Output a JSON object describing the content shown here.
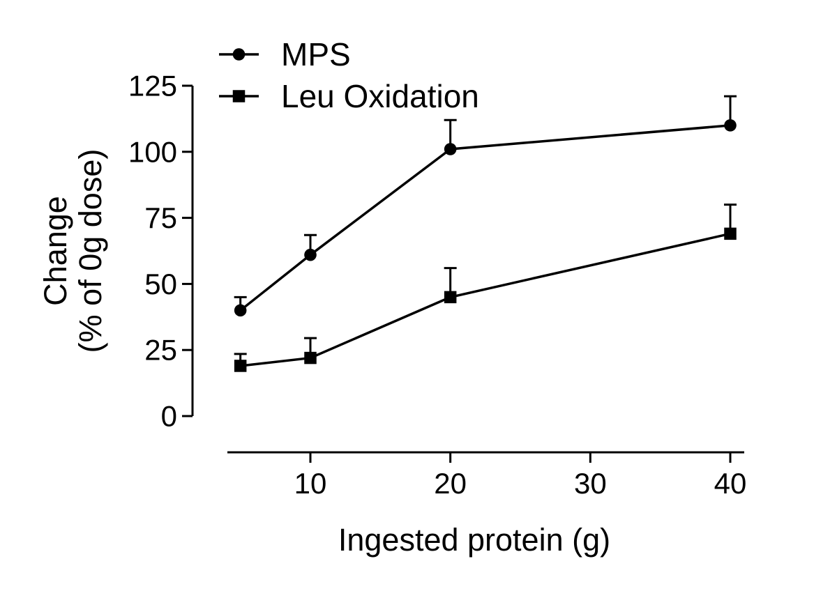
{
  "figure": {
    "background": "#ffffff",
    "foreground": "#000000"
  },
  "chart_data": {
    "type": "line",
    "x": [
      5,
      10,
      20,
      40
    ],
    "series": [
      {
        "name": "MPS",
        "marker": "circle",
        "values": [
          40,
          61,
          101,
          110
        ],
        "error_up": [
          5,
          7.5,
          11,
          11
        ]
      },
      {
        "name": "Leu Oxidation",
        "marker": "square",
        "values": [
          19,
          22,
          45,
          69
        ],
        "error_up": [
          4.5,
          7.5,
          11,
          11
        ]
      }
    ],
    "title": "",
    "xlabel": "Ingested protein (g)",
    "ylabel_line1": "Change",
    "ylabel_line2": "(% of 0g dose)",
    "x_ticks": [
      10,
      20,
      30,
      40
    ],
    "y_ticks": [
      0,
      25,
      50,
      75,
      100,
      125
    ],
    "xlim": [
      4,
      41
    ],
    "ylim": [
      0,
      125
    ],
    "grid": false,
    "legend_position": "top-left",
    "error_bars": "upper-only",
    "colors": {
      "series": "#000000",
      "background": "#ffffff"
    }
  }
}
